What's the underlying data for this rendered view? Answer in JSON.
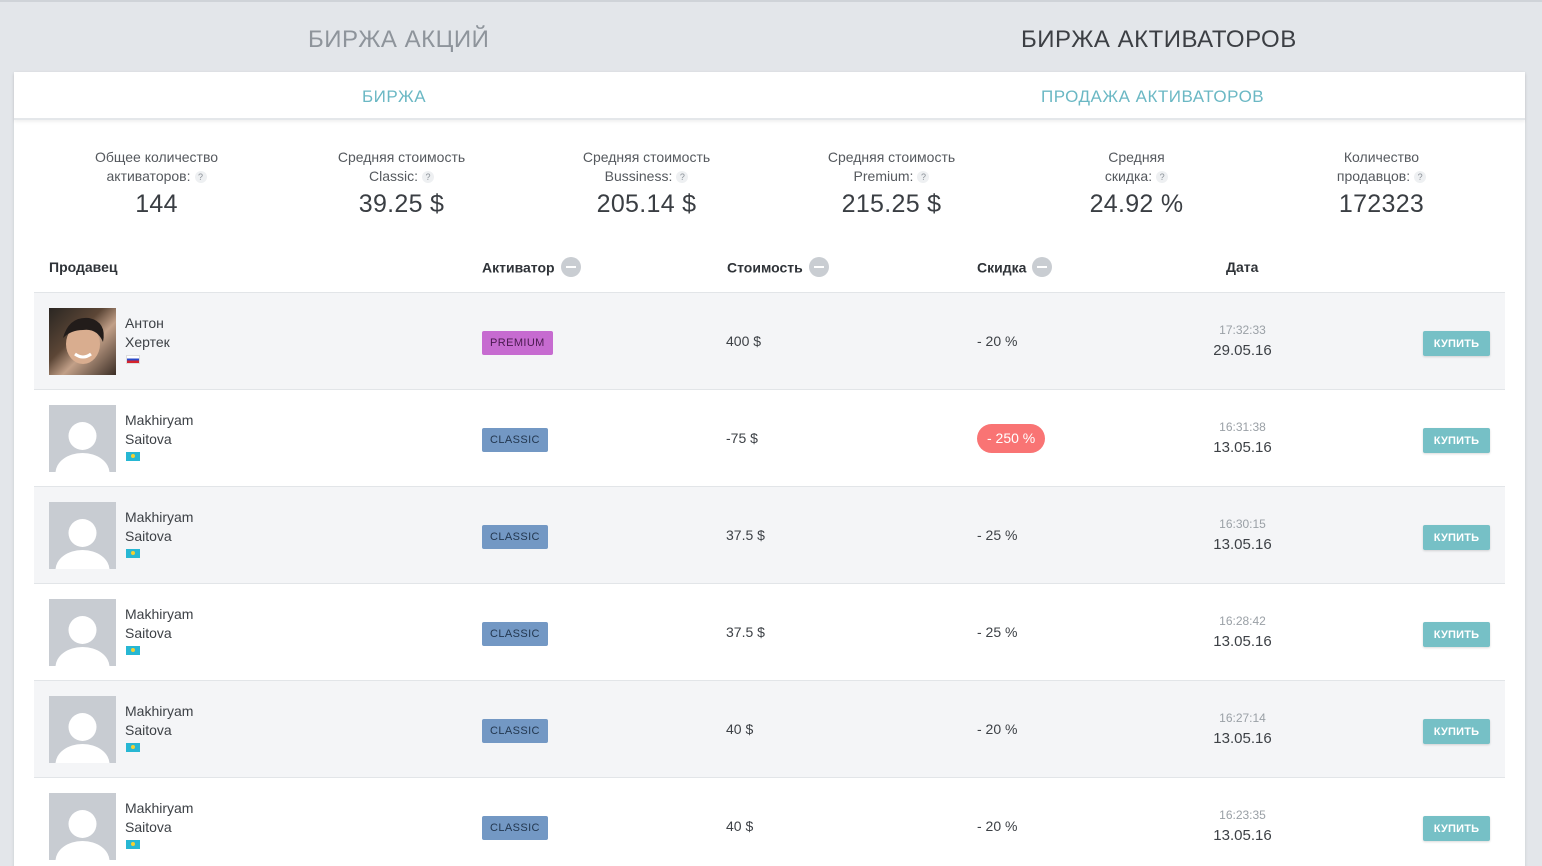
{
  "top_tabs": [
    {
      "label": "БИРЖА АКЦИЙ",
      "active": false
    },
    {
      "label": "БИРЖА АКТИВАТОРОВ",
      "active": true
    }
  ],
  "sub_tabs": [
    {
      "label": "БИРЖА"
    },
    {
      "label": "ПРОДАЖА АКТИВАТОРОВ"
    }
  ],
  "stats": [
    {
      "label_line1": "Общее количество",
      "label_line2": "активаторов:",
      "value": "144"
    },
    {
      "label_line1": "Средняя стоимость",
      "label_line2": "Classic:",
      "value": "39.25 $"
    },
    {
      "label_line1": "Средняя стоимость",
      "label_line2": "Bussiness:",
      "value": "205.14 $"
    },
    {
      "label_line1": "Средняя стоимость",
      "label_line2": "Premium:",
      "value": "215.25 $"
    },
    {
      "label_line1": "Средняя",
      "label_line2": "скидка:",
      "value": "24.92 %"
    },
    {
      "label_line1": "Количество",
      "label_line2": "продавцов:",
      "value": "172323"
    }
  ],
  "help_glyph": "?",
  "table": {
    "columns": {
      "seller": "Продавец",
      "activator": "Активатор",
      "price": "Стоимость",
      "discount": "Скидка",
      "date": "Дата"
    },
    "buy_label": "КУПИТЬ",
    "rows": [
      {
        "first_name": "Антон",
        "last_name": "Хертек",
        "avatar": "photo",
        "flag": "ru",
        "activator": "PREMIUM",
        "price": "400 $",
        "discount": "- 20 %",
        "discount_negative": false,
        "time": "17:32:33",
        "date": "29.05.16"
      },
      {
        "first_name": "Makhiryam",
        "last_name": "Saitova",
        "avatar": "default",
        "flag": "kz",
        "activator": "CLASSIC",
        "price": "-75 $",
        "discount": "- 250 %",
        "discount_negative": true,
        "time": "16:31:38",
        "date": "13.05.16"
      },
      {
        "first_name": "Makhiryam",
        "last_name": "Saitova",
        "avatar": "default",
        "flag": "kz",
        "activator": "CLASSIC",
        "price": "37.5 $",
        "discount": "- 25 %",
        "discount_negative": false,
        "time": "16:30:15",
        "date": "13.05.16"
      },
      {
        "first_name": "Makhiryam",
        "last_name": "Saitova",
        "avatar": "default",
        "flag": "kz",
        "activator": "CLASSIC",
        "price": "37.5 $",
        "discount": "- 25 %",
        "discount_negative": false,
        "time": "16:28:42",
        "date": "13.05.16"
      },
      {
        "first_name": "Makhiryam",
        "last_name": "Saitova",
        "avatar": "default",
        "flag": "kz",
        "activator": "CLASSIC",
        "price": "40 $",
        "discount": "- 20 %",
        "discount_negative": false,
        "time": "16:27:14",
        "date": "13.05.16"
      },
      {
        "first_name": "Makhiryam",
        "last_name": "Saitova",
        "avatar": "default",
        "flag": "kz",
        "activator": "CLASSIC",
        "price": "40 $",
        "discount": "- 20 %",
        "discount_negative": false,
        "time": "16:23:35",
        "date": "13.05.16"
      }
    ]
  },
  "colors": {
    "accent": "#6bb8c4",
    "premium": "#c66bd0",
    "classic": "#7398c4",
    "negative_discount": "#f97474",
    "buy_button": "#76c0c6"
  }
}
